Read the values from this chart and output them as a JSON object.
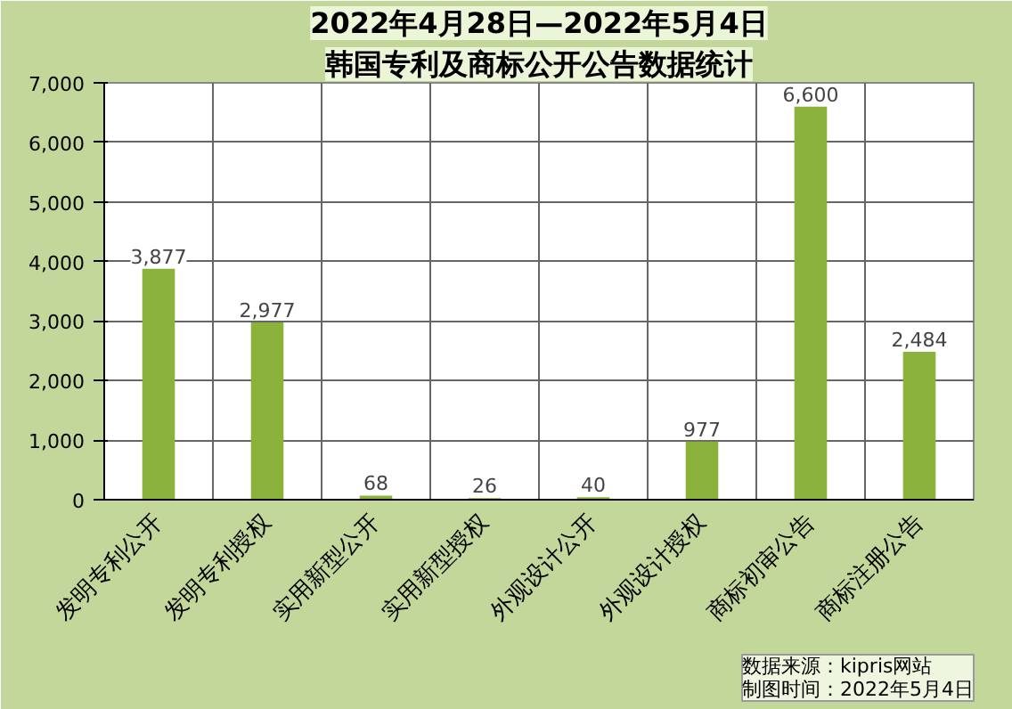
{
  "chart_data": {
    "type": "bar",
    "title": "2022年4月28日—2022年5月4日",
    "subtitle": "韩国专利及商标公开公告数据统计",
    "categories": [
      "发明专利公开",
      "发明专利授权",
      "实用新型公开",
      "实用新型授权",
      "外观设计公开",
      "外观设计授权",
      "商标初审公告",
      "商标注册公告"
    ],
    "values": [
      3877,
      2977,
      68,
      26,
      40,
      977,
      6600,
      2484
    ],
    "color": "#8bb23a",
    "ylim": [
      0,
      7000
    ],
    "yticks": [
      {
        "value": 0,
        "label": "0"
      },
      {
        "value": 1000,
        "label": "1,000"
      },
      {
        "value": 2000,
        "label": "2,000"
      },
      {
        "value": 3000,
        "label": "3,000"
      },
      {
        "value": 4000,
        "label": "4,000"
      },
      {
        "value": 5000,
        "label": "5,000"
      },
      {
        "value": 6000,
        "label": "6,000"
      },
      {
        "value": 7000,
        "label": "7,000"
      }
    ],
    "value_labels": [
      "3,877",
      "2,977",
      "68",
      "26",
      "40",
      "977",
      "6,600",
      "2,484"
    ],
    "grid": true,
    "annotations": [
      "数据来源：kipris网站",
      "制图时间：2022年5月4日"
    ]
  }
}
